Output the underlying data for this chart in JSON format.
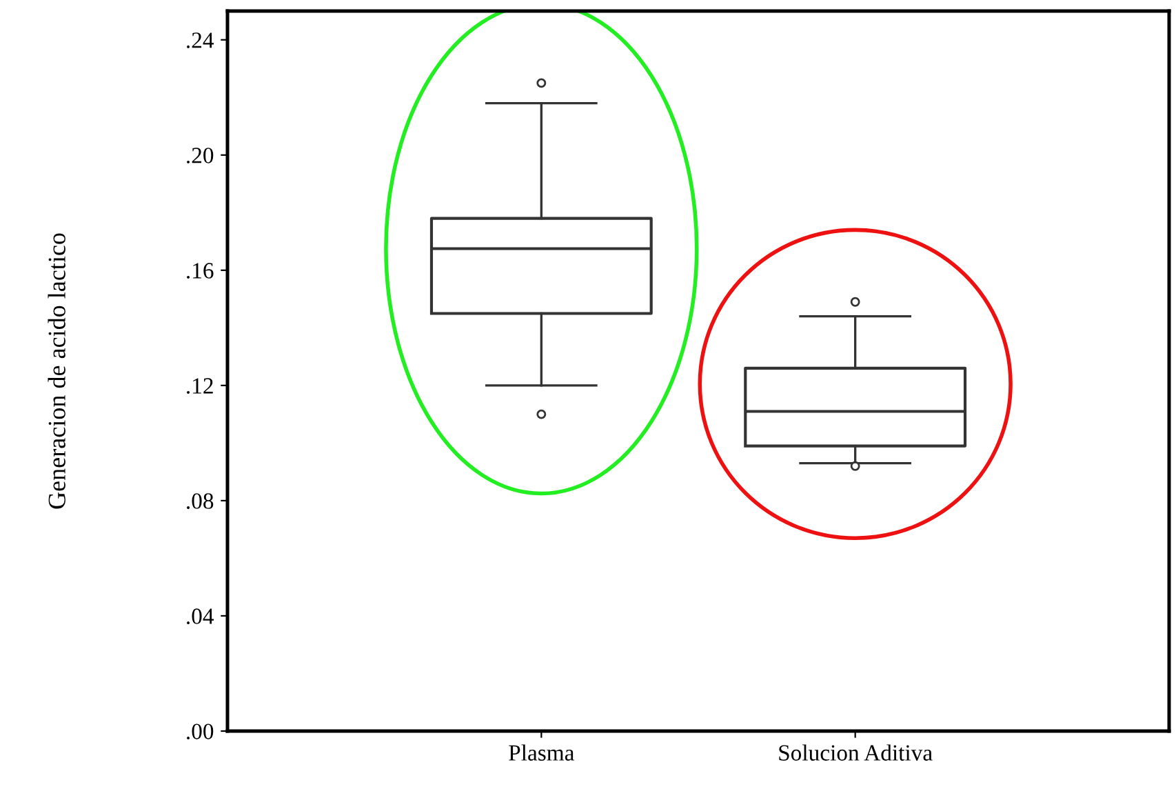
{
  "chart_data": {
    "type": "box",
    "ylabel": "Generacion de acido lactico",
    "categories": [
      "Plasma",
      "Solucion Aditiva"
    ],
    "boxes": [
      {
        "low": 0.12,
        "q1": 0.145,
        "median": 0.1675,
        "q3": 0.178,
        "high": 0.218,
        "outliers": [
          0.225,
          0.11
        ]
      },
      {
        "low": 0.093,
        "q1": 0.099,
        "median": 0.111,
        "q3": 0.126,
        "high": 0.144,
        "outliers": [
          0.149,
          0.092
        ]
      }
    ],
    "ylim": [
      0,
      0.25
    ],
    "yticks": [
      {
        "value": 0,
        "label": ".00"
      },
      {
        "value": 0.04,
        "label": ".04"
      },
      {
        "value": 0.08,
        "label": ".08"
      },
      {
        "value": 0.12,
        "label": ".12"
      },
      {
        "value": 0.16,
        "label": ".16"
      },
      {
        "value": 0.2,
        "label": ".20"
      },
      {
        "value": 0.24,
        "label": ".24"
      }
    ],
    "grid": false,
    "legend": false
  }
}
